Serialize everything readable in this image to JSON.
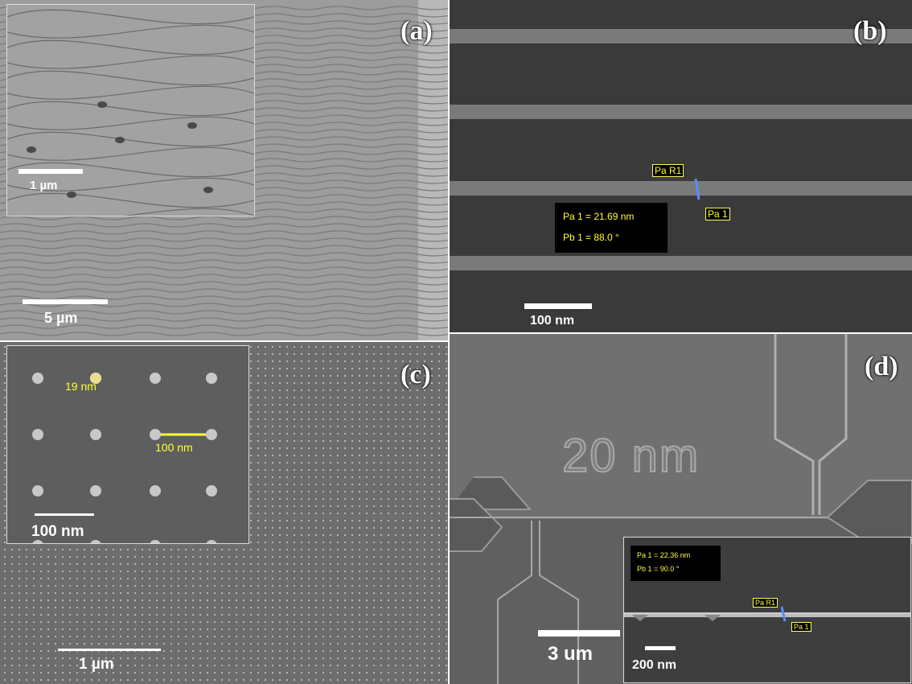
{
  "panels": {
    "a": {
      "label": "(a)",
      "scale_bar": "5 µm",
      "inset_scale_bar": "1 µm"
    },
    "b": {
      "label": "(b)",
      "scale_bar": "100 nm",
      "measure": {
        "cursor_r": "Pa R1",
        "cursor": "Pa 1",
        "line1": "Pa 1 = 21.69 nm",
        "line2": "Pb 1 =  88.0 °"
      }
    },
    "c": {
      "label": "(c)",
      "scale_bar": "1 µm",
      "inset_scale_bar": "100 nm",
      "inset_dot_label": "19 nm",
      "inset_pitch_label": "100 nm"
    },
    "d": {
      "label": "(d)",
      "pattern_text": "20 nm",
      "scale_bar": "3  um",
      "inset_scale_bar": "200 nm",
      "measure": {
        "cursor_r": "Pa R1",
        "cursor": "Pa 1",
        "line1": "Pa 1 = 22.36 nm",
        "line2": "Pb 1 =  90.0 °"
      }
    }
  },
  "colors": {
    "measurement_text": "#ffff33",
    "scale_bar": "#ffffff"
  }
}
